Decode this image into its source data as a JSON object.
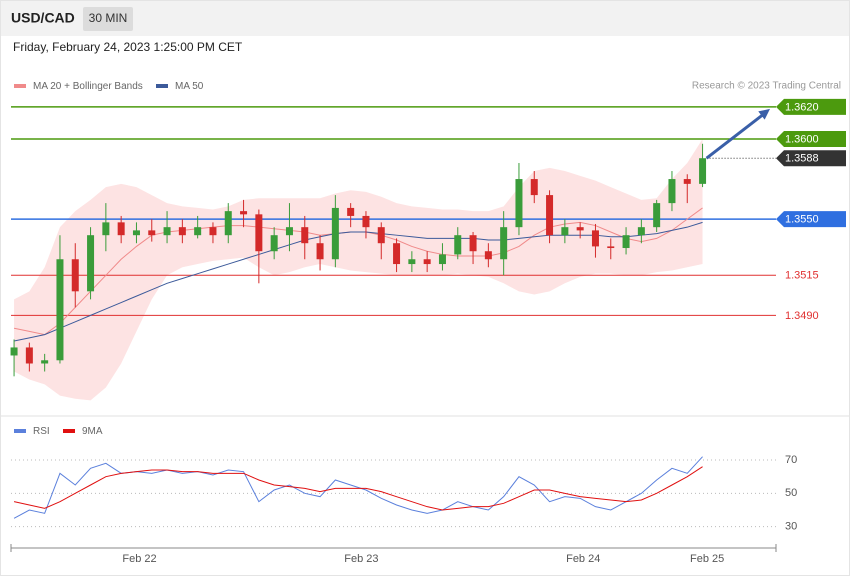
{
  "header": {
    "symbol": "USD/CAD",
    "timeframe": "30 MIN",
    "datetime": "Friday, February 24, 2023 1:25:00 PM CET",
    "copyright": "Research © 2023 Trading Central"
  },
  "chart_data": [
    {
      "type": "candlestick",
      "legend": [
        {
          "name": "MA 20 + Bollinger Bands",
          "color": "#f08a8a"
        },
        {
          "name": "MA 50",
          "color": "#3c5a9a"
        }
      ],
      "up_color": "#3a9c3a",
      "down_color": "#d42a2a",
      "band_color": "#fde3e3",
      "xlim": [
        -0.2,
        49.8
      ],
      "xticks": [
        {
          "value": 8.2,
          "label": "Feb 22"
        },
        {
          "value": 22.7,
          "label": "Feb 23"
        },
        {
          "value": 37.2,
          "label": "Feb 24"
        },
        {
          "value": 45.3,
          "label": "Feb 25"
        }
      ],
      "ylim": [
        1.3431,
        1.3643
      ],
      "open": [
        1.3465,
        1.347,
        1.346,
        1.3462,
        1.3525,
        1.3505,
        1.354,
        1.3548,
        1.354,
        1.3543,
        1.354,
        1.3545,
        1.354,
        1.3545,
        1.354,
        1.3555,
        1.3553,
        1.353,
        1.354,
        1.3545,
        1.3535,
        1.3525,
        1.3557,
        1.3552,
        1.3545,
        1.3535,
        1.3522,
        1.3525,
        1.3522,
        1.3528,
        1.354,
        1.353,
        1.3525,
        1.3545,
        1.3575,
        1.3565,
        1.354,
        1.3545,
        1.3543,
        1.3533,
        1.3532,
        1.354,
        1.3545,
        1.356,
        1.3575,
        1.3572
      ],
      "high": [
        1.3475,
        1.3473,
        1.3466,
        1.354,
        1.3535,
        1.3545,
        1.356,
        1.3552,
        1.3548,
        1.355,
        1.3555,
        1.355,
        1.3552,
        1.3548,
        1.356,
        1.3562,
        1.3556,
        1.3545,
        1.356,
        1.3552,
        1.354,
        1.3565,
        1.356,
        1.3555,
        1.3548,
        1.3538,
        1.353,
        1.353,
        1.3535,
        1.3545,
        1.3542,
        1.3535,
        1.3555,
        1.3585,
        1.358,
        1.3568,
        1.355,
        1.3548,
        1.3547,
        1.3538,
        1.3545,
        1.355,
        1.3562,
        1.358,
        1.3578,
        1.3597
      ],
      "low": [
        1.3452,
        1.3455,
        1.3455,
        1.346,
        1.3495,
        1.35,
        1.353,
        1.3535,
        1.3535,
        1.3536,
        1.3535,
        1.3535,
        1.3538,
        1.3535,
        1.3535,
        1.3545,
        1.351,
        1.3525,
        1.353,
        1.3525,
        1.3518,
        1.352,
        1.3545,
        1.3538,
        1.3525,
        1.3517,
        1.3517,
        1.3517,
        1.3518,
        1.3525,
        1.3522,
        1.352,
        1.3515,
        1.354,
        1.356,
        1.3535,
        1.3535,
        1.3538,
        1.3526,
        1.3525,
        1.3528,
        1.3535,
        1.3542,
        1.3555,
        1.356,
        1.357
      ],
      "close": [
        1.347,
        1.346,
        1.3462,
        1.3525,
        1.3505,
        1.354,
        1.3548,
        1.354,
        1.3543,
        1.354,
        1.3545,
        1.354,
        1.3545,
        1.354,
        1.3555,
        1.3553,
        1.353,
        1.354,
        1.3545,
        1.3535,
        1.3525,
        1.3557,
        1.3552,
        1.3545,
        1.3535,
        1.3522,
        1.3525,
        1.3522,
        1.3528,
        1.354,
        1.353,
        1.3525,
        1.3545,
        1.3575,
        1.3565,
        1.354,
        1.3545,
        1.3543,
        1.3533,
        1.3532,
        1.354,
        1.3545,
        1.356,
        1.3575,
        1.3572,
        1.3588
      ],
      "ma20": [
        1.3482,
        1.348,
        1.3478,
        1.3485,
        1.3495,
        1.3505,
        1.3515,
        1.3525,
        1.3533,
        1.354,
        1.3542,
        1.3543,
        1.3544,
        1.3545,
        1.3546,
        1.3546,
        1.3545,
        1.3544,
        1.3543,
        1.3542,
        1.354,
        1.3541,
        1.3542,
        1.3542,
        1.354,
        1.3537,
        1.3533,
        1.353,
        1.3528,
        1.3527,
        1.3527,
        1.3527,
        1.3529,
        1.3533,
        1.354,
        1.3545,
        1.3547,
        1.3548,
        1.3546,
        1.3542,
        1.3538,
        1.3536,
        1.3538,
        1.3543,
        1.355,
        1.3557
      ],
      "ma50": [
        1.3474,
        1.3476,
        1.3478,
        1.3482,
        1.3486,
        1.349,
        1.3494,
        1.3498,
        1.3502,
        1.3506,
        1.351,
        1.3513,
        1.3516,
        1.3519,
        1.3522,
        1.3525,
        1.3528,
        1.3531,
        1.3534,
        1.3537,
        1.3539,
        1.3541,
        1.3542,
        1.3542,
        1.3541,
        1.354,
        1.3539,
        1.3538,
        1.3538,
        1.3538,
        1.3538,
        1.3537,
        1.3537,
        1.3538,
        1.3539,
        1.354,
        1.354,
        1.354,
        1.354,
        1.3539,
        1.3539,
        1.354,
        1.3541,
        1.3543,
        1.3545,
        1.3548
      ],
      "bb_upper": [
        1.35,
        1.3505,
        1.352,
        1.3545,
        1.3555,
        1.3562,
        1.357,
        1.3572,
        1.357,
        1.3565,
        1.356,
        1.3558,
        1.3557,
        1.3556,
        1.3558,
        1.3562,
        1.3563,
        1.3563,
        1.3563,
        1.3563,
        1.3563,
        1.3566,
        1.3568,
        1.3567,
        1.3564,
        1.356,
        1.3558,
        1.3557,
        1.3556,
        1.3556,
        1.3555,
        1.3555,
        1.3558,
        1.357,
        1.358,
        1.3582,
        1.358,
        1.3577,
        1.3574,
        1.357,
        1.3566,
        1.3562,
        1.3563,
        1.3575,
        1.3585,
        1.36
      ],
      "bb_lower": [
        1.3455,
        1.345,
        1.3447,
        1.344,
        1.3438,
        1.3437,
        1.3445,
        1.346,
        1.348,
        1.35,
        1.3515,
        1.352,
        1.3522,
        1.3524,
        1.3525,
        1.3526,
        1.352,
        1.3515,
        1.3517,
        1.352,
        1.3522,
        1.352,
        1.3518,
        1.3517,
        1.3516,
        1.3515,
        1.3515,
        1.3515,
        1.3515,
        1.3516,
        1.3515,
        1.3514,
        1.351,
        1.3505,
        1.3503,
        1.3505,
        1.351,
        1.3514,
        1.3516,
        1.3516,
        1.3515,
        1.3515,
        1.3517,
        1.3518,
        1.352,
        1.3522
      ],
      "levels": [
        {
          "value": 1.362,
          "label": "1.3620",
          "color": "#4c9a0e",
          "boxed": true
        },
        {
          "value": 1.36,
          "label": "1.3600",
          "color": "#4c9a0e",
          "boxed": true
        },
        {
          "value": 1.3588,
          "label": "1.3588",
          "color": "#333333",
          "boxed": true,
          "dotted": true
        },
        {
          "value": 1.355,
          "label": "1.3550",
          "color": "#2f6fe0",
          "boxed": true
        },
        {
          "value": 1.3515,
          "label": "1.3515",
          "color": "#e03030",
          "boxed": false
        },
        {
          "value": 1.349,
          "label": "1.3490",
          "color": "#e03030",
          "boxed": false
        }
      ]
    },
    {
      "type": "line",
      "xlim": [
        -0.2,
        49.8
      ],
      "ylim": [
        22,
        79
      ],
      "yticks": [
        70,
        50,
        30
      ],
      "series": [
        {
          "name": "RSI",
          "color": "#5b80dc",
          "values": [
            35,
            40,
            38,
            62,
            55,
            65,
            68,
            62,
            63,
            62,
            64,
            62,
            63,
            61,
            64,
            63,
            45,
            52,
            55,
            50,
            48,
            58,
            55,
            52,
            47,
            43,
            40,
            38,
            40,
            45,
            42,
            40,
            48,
            60,
            55,
            45,
            48,
            47,
            42,
            40,
            45,
            50,
            58,
            65,
            62,
            72
          ]
        },
        {
          "name": "9MA",
          "color": "#e01010",
          "values": [
            45,
            43,
            41,
            45,
            50,
            55,
            60,
            62,
            63,
            64,
            64,
            63,
            63,
            62,
            62,
            62,
            58,
            55,
            54,
            53,
            51,
            53,
            53,
            53,
            51,
            48,
            45,
            42,
            40,
            41,
            42,
            42,
            44,
            48,
            52,
            52,
            50,
            48,
            47,
            46,
            45,
            46,
            50,
            55,
            60,
            66
          ]
        }
      ]
    }
  ]
}
